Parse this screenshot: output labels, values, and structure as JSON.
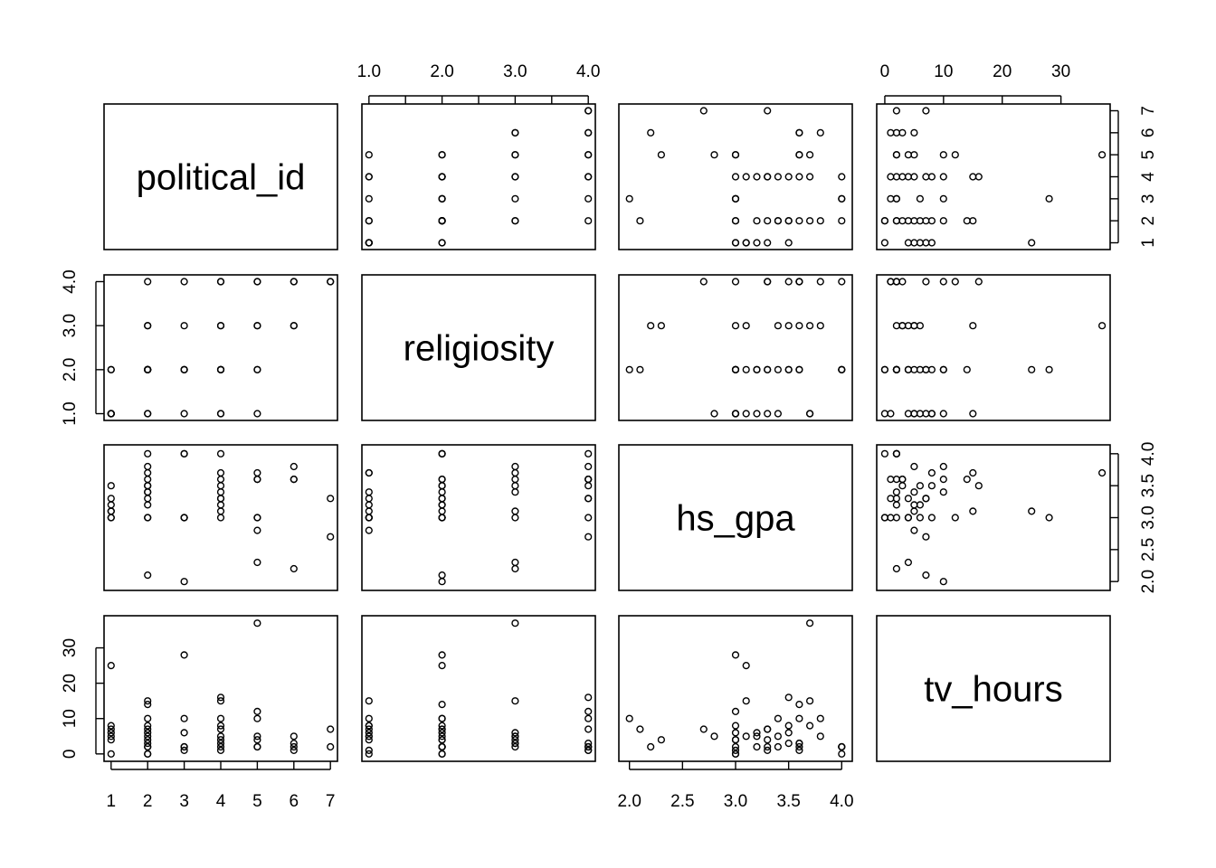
{
  "chart_data": {
    "type": "scatter",
    "variables": [
      {
        "name": "political_id",
        "ticks": [
          1,
          2,
          3,
          4,
          5,
          6,
          7
        ],
        "tick_labels": [
          "1",
          "2",
          "3",
          "4",
          "5",
          "6",
          "7"
        ],
        "lim": [
          0.98,
          7.02
        ]
      },
      {
        "name": "religiosity",
        "ticks": [
          1,
          2,
          3,
          4
        ],
        "tick_labels": [
          "1.0",
          "2.0",
          "3.0",
          "4.0"
        ],
        "minor_ticks": [
          1.5,
          2.5,
          3.5
        ],
        "lim": [
          0.99,
          4.01
        ]
      },
      {
        "name": "hs_gpa",
        "ticks": [
          2.0,
          2.5,
          3.0,
          3.5,
          4.0
        ],
        "tick_labels": [
          "2.0",
          "2.5",
          "3.0",
          "3.5",
          "4.0"
        ],
        "lim": [
          1.96,
          4.04
        ]
      },
      {
        "name": "tv_hours",
        "ticks": [
          0,
          10,
          20,
          30
        ],
        "tick_labels": [
          "0",
          "10",
          "20",
          "30"
        ],
        "lim": [
          -0.3,
          37.3
        ]
      }
    ],
    "observations": [
      [
        1,
        2,
        3.5,
        8
      ],
      [
        1,
        1,
        3.3,
        7
      ],
      [
        1,
        1,
        3.2,
        6
      ],
      [
        1,
        1,
        3.1,
        5
      ],
      [
        1,
        1,
        3.0,
        4
      ],
      [
        1,
        2,
        3.1,
        25
      ],
      [
        1,
        1,
        3.0,
        0
      ],
      [
        2,
        2,
        4.0,
        0
      ],
      [
        2,
        4,
        3.8,
        10
      ],
      [
        2,
        1,
        3.7,
        15
      ],
      [
        2,
        2,
        3.6,
        14
      ],
      [
        2,
        2,
        3.5,
        6
      ],
      [
        2,
        3,
        3.4,
        5
      ],
      [
        2,
        2,
        3.3,
        4
      ],
      [
        2,
        2,
        3.2,
        2
      ],
      [
        2,
        1,
        3.0,
        8
      ],
      [
        2,
        2,
        2.1,
        7
      ],
      [
        2,
        3,
        3.5,
        3
      ],
      [
        2,
        2,
        3.4,
        2
      ],
      [
        2,
        2,
        3.0,
        0
      ],
      [
        3,
        4,
        4.0,
        2
      ],
      [
        3,
        1,
        3.0,
        1
      ],
      [
        3,
        2,
        2.0,
        10
      ],
      [
        3,
        3,
        3.0,
        6
      ],
      [
        3,
        2,
        3.0,
        28
      ],
      [
        3,
        2,
        4.0,
        2
      ],
      [
        4,
        1,
        3.7,
        8
      ],
      [
        4,
        4,
        3.5,
        16
      ],
      [
        4,
        1,
        3.4,
        10
      ],
      [
        4,
        2,
        3.3,
        7
      ],
      [
        4,
        2,
        3.2,
        5
      ],
      [
        4,
        2,
        3.0,
        4
      ],
      [
        4,
        2,
        4.0,
        2
      ],
      [
        4,
        3,
        3.6,
        3
      ],
      [
        4,
        4,
        3.3,
        1
      ],
      [
        4,
        3,
        3.1,
        15
      ],
      [
        5,
        3,
        3.7,
        37
      ],
      [
        5,
        2,
        3.6,
        10
      ],
      [
        5,
        4,
        3.0,
        12
      ],
      [
        5,
        1,
        2.8,
        5
      ],
      [
        5,
        3,
        2.3,
        4
      ],
      [
        5,
        4,
        3.6,
        2
      ],
      [
        5,
        2,
        3.0,
        2
      ],
      [
        6,
        3,
        3.8,
        5
      ],
      [
        6,
        4,
        3.6,
        3
      ],
      [
        6,
        3,
        2.2,
        2
      ],
      [
        6,
        4,
        3.6,
        1
      ],
      [
        7,
        4,
        3.3,
        2
      ],
      [
        7,
        4,
        2.7,
        7
      ]
    ]
  }
}
